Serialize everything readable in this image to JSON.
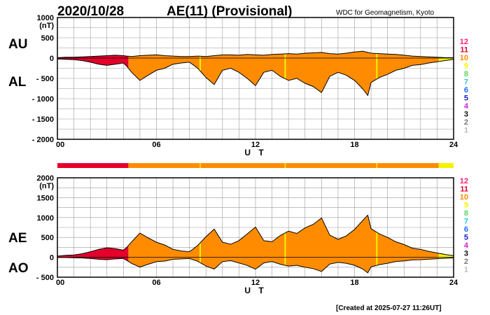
{
  "header": {
    "date": "2020/10/28",
    "title": "AE(11) (Provisional)",
    "credit": "WDC for Geomagnetism, Kyoto"
  },
  "footer": {
    "created": "[Created at 2025-07-27 11:26UT]"
  },
  "legend": {
    "levels": [
      {
        "label": "12",
        "color": "#ff1f6e"
      },
      {
        "label": "11",
        "color": "#e4002b"
      },
      {
        "label": "10",
        "color": "#ff8c00"
      },
      {
        "label": "9",
        "color": "#f4f400"
      },
      {
        "label": "8",
        "color": "#5cd65c"
      },
      {
        "label": "7",
        "color": "#25c6e6"
      },
      {
        "label": "6",
        "color": "#1a6cff"
      },
      {
        "label": "5",
        "color": "#1c1cc8"
      },
      {
        "label": "4",
        "color": "#d020d0"
      },
      {
        "label": "3",
        "color": "#111111"
      },
      {
        "label": "2",
        "color": "#777777"
      },
      {
        "label": "1",
        "color": "#bbbbbb"
      }
    ]
  },
  "chart_data": [
    {
      "type": "area",
      "title": "AU / AL",
      "series_labels": [
        "AU",
        "AL"
      ],
      "units": "(nT)",
      "xlabel": "U T",
      "xlim": [
        0,
        24
      ],
      "xticks": [
        0,
        6,
        12,
        18,
        24
      ],
      "xtick_labels": [
        "00",
        "06",
        "12",
        "18",
        "24"
      ],
      "ylim": [
        -2000,
        1000
      ],
      "yticks": [
        1000,
        500,
        0,
        -500,
        -1000,
        -1500,
        -2000
      ],
      "ytick_labels": [
        "1000",
        "500",
        "0",
        "- 500",
        "- 1000",
        "- 1500",
        "- 2000"
      ],
      "x": [
        0,
        0.5,
        1,
        1.5,
        2,
        2.5,
        3,
        3.5,
        4,
        4.2,
        4.5,
        5,
        5.5,
        6,
        6.5,
        7,
        7.5,
        8,
        8.5,
        9,
        9.5,
        10,
        10.5,
        11,
        11.5,
        12,
        12.5,
        13,
        13.5,
        14,
        14.5,
        15,
        15.5,
        16,
        16.5,
        17,
        17.5,
        18,
        18.5,
        18.8,
        19,
        19.5,
        20,
        20.5,
        21,
        21.5,
        22,
        22.5,
        23,
        23.5,
        24
      ],
      "series": [
        {
          "name": "AU",
          "values": [
            10,
            20,
            20,
            30,
            40,
            50,
            60,
            70,
            60,
            50,
            40,
            60,
            70,
            80,
            60,
            50,
            40,
            40,
            50,
            40,
            60,
            80,
            80,
            70,
            90,
            80,
            70,
            90,
            100,
            110,
            100,
            120,
            130,
            140,
            110,
            100,
            120,
            150,
            170,
            140,
            120,
            110,
            100,
            90,
            70,
            50,
            40,
            30,
            20,
            10,
            10
          ]
        },
        {
          "name": "AL",
          "values": [
            -20,
            -30,
            -40,
            -60,
            -100,
            -150,
            -180,
            -150,
            -120,
            -200,
            -350,
            -550,
            -420,
            -300,
            -250,
            -150,
            -120,
            -100,
            -250,
            -480,
            -650,
            -300,
            -250,
            -350,
            -500,
            -680,
            -350,
            -300,
            -450,
            -550,
            -500,
            -620,
            -700,
            -850,
            -450,
            -350,
            -420,
            -550,
            -760,
            -920,
            -600,
            -480,
            -400,
            -300,
            -250,
            -180,
            -160,
            -120,
            -90,
            -60,
            -30
          ]
        }
      ],
      "activity_segments": [
        {
          "from": 0,
          "to": 4.3,
          "color": "#e4002b"
        },
        {
          "from": 4.3,
          "to": 23.1,
          "color": "#ff8c00"
        },
        {
          "from": 23.1,
          "to": 24,
          "color": "#f4f400"
        }
      ],
      "markers": [
        8.65,
        13.8,
        19.35
      ]
    },
    {
      "type": "area",
      "title": "AE / AO",
      "series_labels": [
        "AE",
        "AO"
      ],
      "units": "(nT)",
      "xlabel": "U T",
      "xlim": [
        0,
        24
      ],
      "xticks": [
        0,
        6,
        12,
        18,
        24
      ],
      "xtick_labels": [
        "00",
        "06",
        "12",
        "18",
        "24"
      ],
      "ylim": [
        -500,
        2000
      ],
      "yticks": [
        2000,
        1500,
        1000,
        500,
        0,
        -500
      ],
      "ytick_labels": [
        "2000",
        "1500",
        "1000",
        "500",
        "0",
        "- 500"
      ],
      "x": [
        0,
        0.5,
        1,
        1.5,
        2,
        2.5,
        3,
        3.5,
        4,
        4.2,
        4.5,
        5,
        5.5,
        6,
        6.5,
        7,
        7.5,
        8,
        8.5,
        9,
        9.5,
        10,
        10.5,
        11,
        11.5,
        12,
        12.5,
        13,
        13.5,
        14,
        14.5,
        15,
        15.5,
        16,
        16.5,
        17,
        17.5,
        18,
        18.5,
        18.8,
        19,
        19.5,
        20,
        20.5,
        21,
        21.5,
        22,
        22.5,
        23,
        23.5,
        24
      ],
      "series": [
        {
          "name": "AE",
          "values": [
            30,
            50,
            60,
            90,
            140,
            200,
            240,
            220,
            180,
            250,
            390,
            610,
            490,
            380,
            310,
            200,
            160,
            140,
            300,
            520,
            710,
            380,
            330,
            420,
            590,
            760,
            420,
            390,
            550,
            660,
            600,
            740,
            830,
            990,
            560,
            450,
            540,
            700,
            930,
            1060,
            720,
            590,
            500,
            390,
            320,
            230,
            200,
            150,
            110,
            70,
            40
          ]
        },
        {
          "name": "AO",
          "values": [
            -5,
            -5,
            -10,
            -15,
            -30,
            -50,
            -60,
            -40,
            -30,
            -75,
            -155,
            -245,
            -175,
            -110,
            -95,
            -50,
            -40,
            -30,
            -100,
            -220,
            -295,
            -110,
            -85,
            -140,
            -205,
            -300,
            -140,
            -105,
            -175,
            -220,
            -200,
            -250,
            -285,
            -355,
            -170,
            -125,
            -150,
            -200,
            -295,
            -390,
            -240,
            -185,
            -150,
            -105,
            -90,
            -65,
            -60,
            -45,
            -35,
            -25,
            -10
          ]
        }
      ],
      "activity_segments": [
        {
          "from": 0,
          "to": 4.3,
          "color": "#e4002b"
        },
        {
          "from": 4.3,
          "to": 23.1,
          "color": "#ff8c00"
        },
        {
          "from": 23.1,
          "to": 24,
          "color": "#f4f400"
        }
      ],
      "markers": [
        8.65,
        13.8,
        19.35
      ]
    }
  ]
}
